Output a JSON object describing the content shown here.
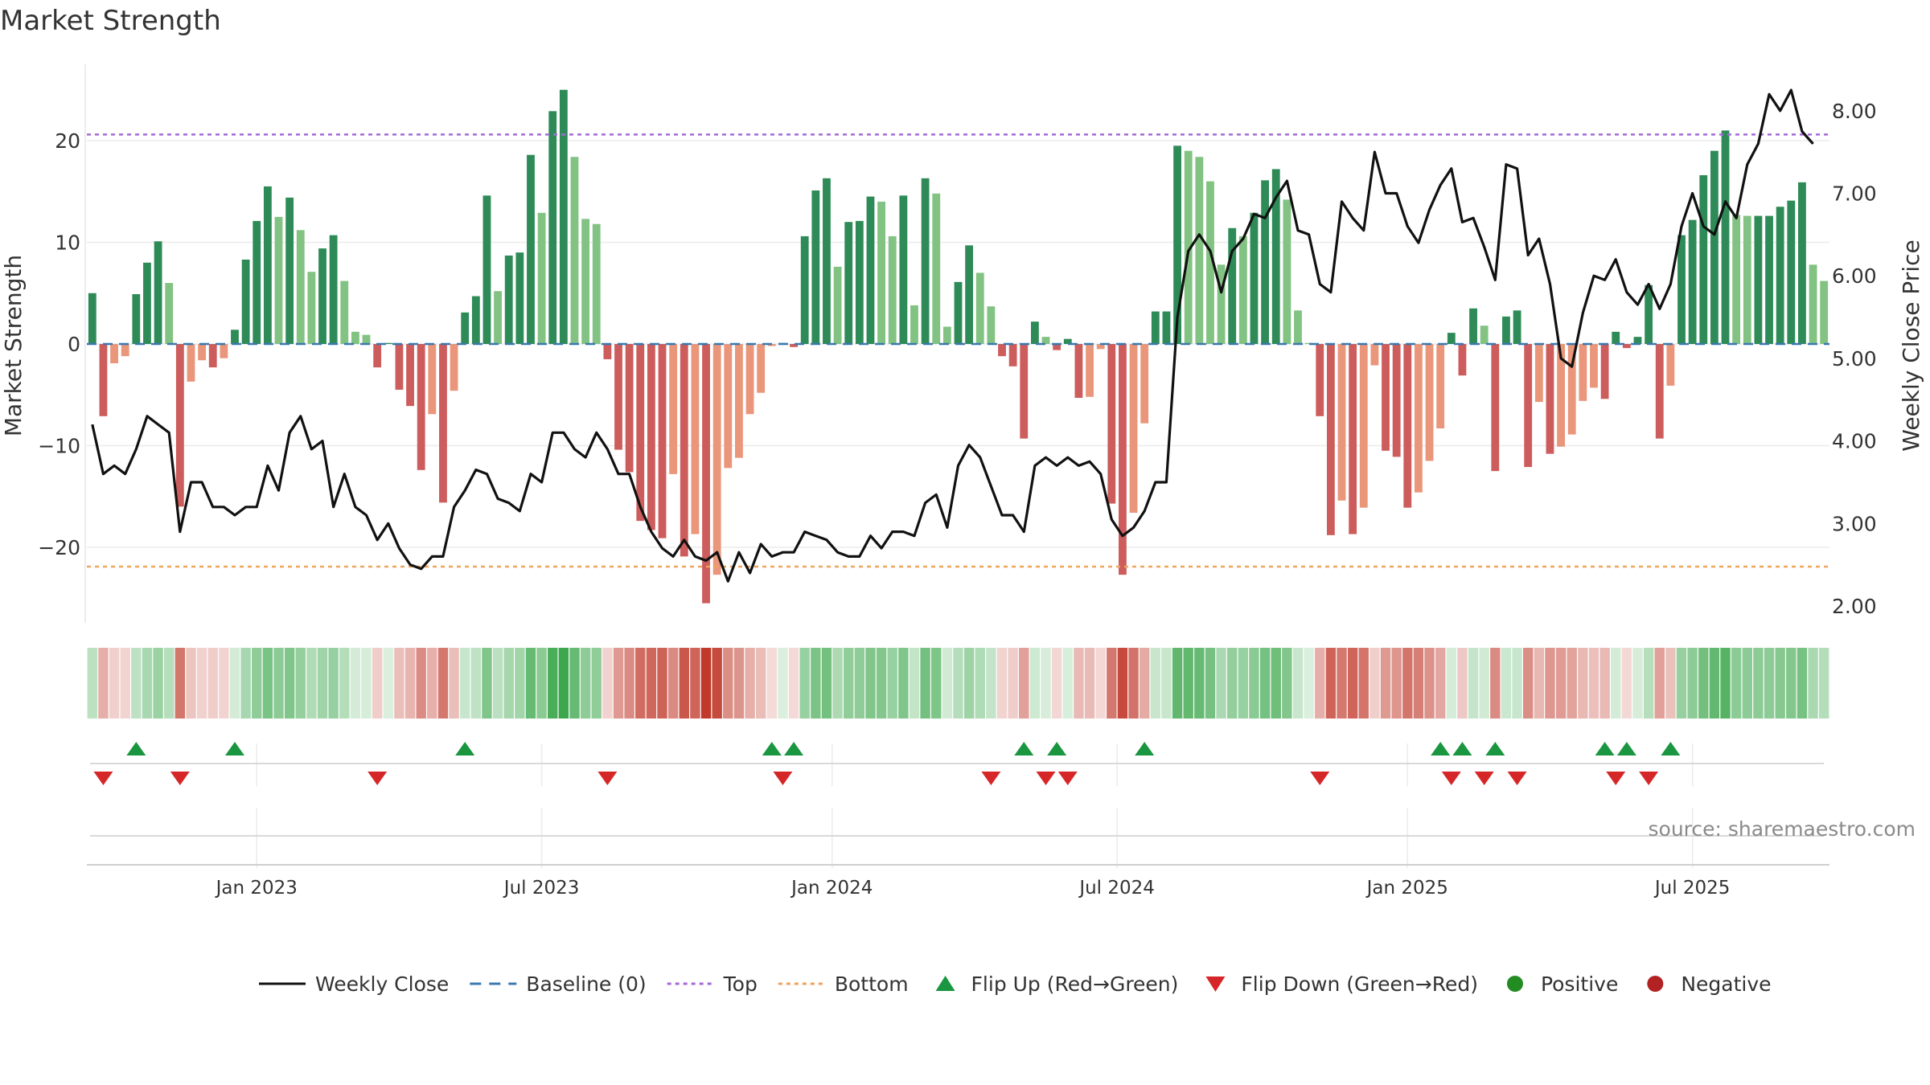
{
  "chart_data": {
    "type": "bar+line",
    "title": "Market Strength",
    "ylabel_left": "Market Strength",
    "ylabel_right": "Weekly Close Price",
    "source": "source: sharemaestro.com",
    "left_axis": {
      "ylim": [
        -27.5,
        27
      ],
      "ticks": [
        -20,
        -10,
        0,
        10,
        20
      ],
      "tick_labels": [
        "−20",
        "−10",
        "0",
        "10",
        "20"
      ]
    },
    "right_axis": {
      "ylim": [
        1.8,
        8.6
      ],
      "ticks": [
        2,
        3,
        4,
        5,
        6,
        7,
        8
      ],
      "tick_labels": [
        "2.00",
        "3.00",
        "4.00",
        "5.00",
        "6.00",
        "7.00",
        "8.00"
      ]
    },
    "x_ticks": [
      "Jan 2023",
      "Jul 2023",
      "Jan 2024",
      "Jul 2024",
      "Jan 2025",
      "Jul 2025"
    ],
    "x_tick_index": [
      15,
      41,
      67.5,
      93.5,
      120,
      146
    ],
    "top_line": 20.6,
    "bottom_line": -21.9,
    "strength": [
      5,
      -7.1,
      -1.9,
      -1.2,
      4.9,
      8,
      10.1,
      6,
      -16,
      -3.7,
      -1.6,
      -2.3,
      -1.4,
      1.4,
      8.3,
      12.1,
      15.5,
      12.5,
      14.4,
      11.2,
      7.1,
      9.4,
      10.7,
      6.2,
      1.2,
      0.9,
      -2.3,
      0.1,
      -4.5,
      -6.1,
      -12.4,
      -6.9,
      -15.6,
      -4.6,
      3.1,
      4.7,
      14.6,
      5.2,
      8.7,
      9,
      18.6,
      12.9,
      22.9,
      25,
      18.4,
      12.3,
      11.8,
      -1.5,
      -10.4,
      -12.6,
      -17.4,
      -18.3,
      -19.1,
      -12.8,
      -20.9,
      -18.7,
      -25.5,
      -22.7,
      -12.2,
      -11.2,
      -6.9,
      -4.8,
      -0.2,
      0.1,
      -0.3,
      10.6,
      15.1,
      16.3,
      7.6,
      12,
      12.1,
      14.5,
      14,
      10.6,
      14.6,
      3.8,
      16.3,
      14.8,
      1.7,
      6.1,
      9.7,
      7,
      3.7,
      -1.2,
      -2.2,
      -9.3,
      2.2,
      0.7,
      -0.6,
      0.5,
      -5.3,
      -5.2,
      -0.5,
      -15.7,
      -22.7,
      -16.6,
      -7.8,
      3.2,
      3.2,
      19.5,
      19,
      18.4,
      16,
      7.8,
      11.4,
      10.6,
      12.9,
      16.1,
      17.2,
      14.2,
      3.3,
      0.1,
      -7.1,
      -18.8,
      -15.4,
      -18.7,
      -16.1,
      -2.1,
      -10.5,
      -11.1,
      -16.1,
      -14.6,
      -11.5,
      -8.3,
      1.1,
      -3.1,
      3.5,
      1.8,
      -12.5,
      2.7,
      3.3,
      -12.1,
      -5.7,
      -10.8,
      -10.1,
      -8.9,
      -5.6,
      -4.3,
      -5.4,
      1.2,
      -0.4,
      0.7,
      5.8,
      -9.3,
      -4.1,
      10.7,
      12.2,
      16.6,
      19,
      21,
      12.7,
      12.6,
      12.6,
      12.6,
      13.5,
      14.1,
      15.9,
      7.8,
      6.2
    ],
    "weekly_close": [
      4.2,
      3.6,
      3.7,
      3.6,
      3.9,
      4.3,
      4.2,
      4.1,
      2.9,
      3.5,
      3.5,
      3.2,
      3.2,
      3.1,
      3.2,
      3.2,
      3.7,
      3.4,
      4.1,
      4.3,
      3.9,
      4,
      3.2,
      3.6,
      3.2,
      3.1,
      2.8,
      3,
      2.7,
      2.5,
      2.45,
      2.6,
      2.6,
      3.2,
      3.4,
      3.65,
      3.6,
      3.3,
      3.25,
      3.15,
      3.6,
      3.5,
      4.1,
      4.1,
      3.9,
      3.8,
      4.1,
      3.9,
      3.6,
      3.6,
      3.2,
      2.9,
      2.7,
      2.6,
      2.8,
      2.6,
      2.55,
      2.65,
      2.3,
      2.65,
      2.4,
      2.75,
      2.6,
      2.65,
      2.65,
      2.9,
      2.85,
      2.8,
      2.65,
      2.6,
      2.6,
      2.85,
      2.7,
      2.9,
      2.9,
      2.85,
      3.25,
      3.35,
      2.95,
      3.7,
      3.95,
      3.8,
      3.45,
      3.1,
      3.1,
      2.9,
      3.7,
      3.8,
      3.7,
      3.8,
      3.7,
      3.75,
      3.6,
      3.05,
      2.85,
      2.95,
      3.15,
      3.5,
      3.5,
      5.5,
      6.3,
      6.5,
      6.3,
      5.8,
      6.3,
      6.45,
      6.75,
      6.7,
      6.95,
      7.15,
      6.55,
      6.5,
      5.9,
      5.8,
      6.9,
      6.7,
      6.55,
      7.5,
      7,
      7,
      6.6,
      6.4,
      6.8,
      7.1,
      7.3,
      6.65,
      6.7,
      6.35,
      5.95,
      7.35,
      7.3,
      6.25,
      6.45,
      5.9,
      5,
      4.9,
      5.55,
      6,
      5.95,
      6.2,
      5.8,
      5.65,
      5.9,
      5.6,
      5.9,
      6.6,
      7,
      6.6,
      6.5,
      6.9,
      6.7,
      7.35,
      7.6,
      8.2,
      8,
      8.25,
      7.75,
      7.6
    ],
    "flip_up_index": [
      4,
      13,
      34,
      62,
      64,
      85,
      88,
      96,
      123,
      125,
      128,
      138,
      140,
      144
    ],
    "flip_down_index": [
      1,
      8,
      26,
      47,
      63,
      82,
      87,
      89,
      112,
      124,
      127,
      130,
      139,
      142
    ],
    "legend": [
      "Weekly Close",
      "Baseline (0)",
      "Top",
      "Bottom",
      "Flip Up (Red→Green)",
      "Flip Down (Green→Red)",
      "Positive",
      "Negative"
    ],
    "colors": {
      "close": "#111111",
      "baseline": "#3a78b0",
      "top": "#a46ad8",
      "bottom": "#f0a35c",
      "pos_strong": "#2e8b57",
      "pos_light": "#82c282",
      "neg_strong": "#cd5c5c",
      "neg_light": "#e9967a",
      "flip_up": "#1a9641",
      "flip_down": "#d62728",
      "positive": "#228b22",
      "negative": "#b22222",
      "grid": "#ebebeb"
    }
  }
}
